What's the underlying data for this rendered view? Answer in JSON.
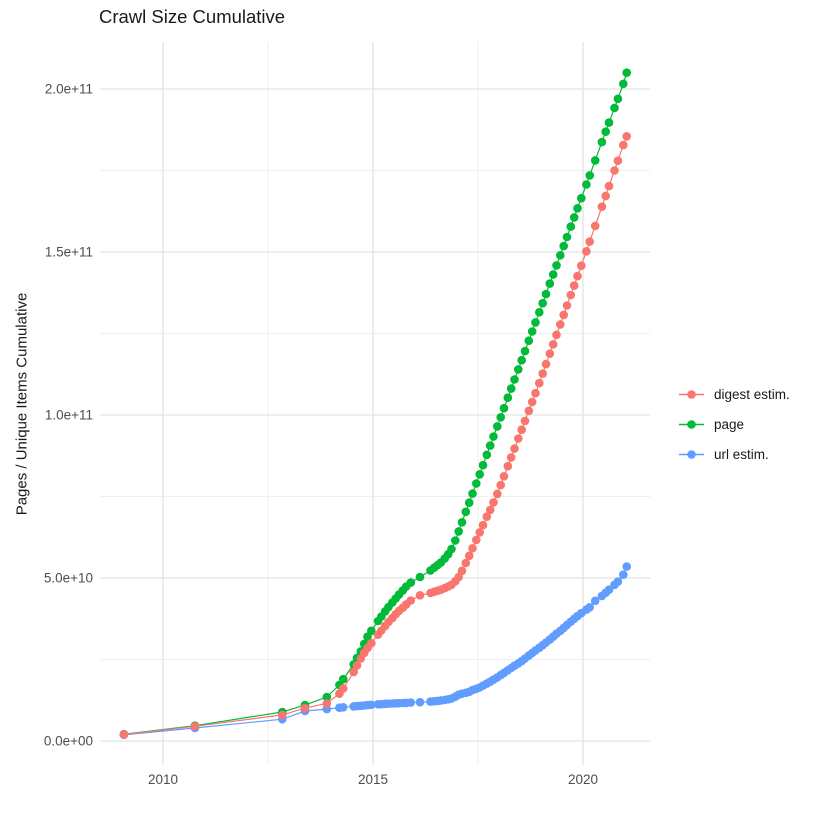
{
  "figure": {
    "title": "Crawl Size Cumulative",
    "background": "#ffffff"
  },
  "chart_data": {
    "type": "line",
    "title": "Crawl Size Cumulative",
    "xlabel": "",
    "ylabel": "Pages / Unique Items Cumulative",
    "grid": true,
    "legend_position": "right",
    "x_axis": {
      "range": [
        2008.5,
        2021.6
      ],
      "major_ticks": [
        {
          "label": "2010",
          "value": 2010
        },
        {
          "label": "2015",
          "value": 2015
        },
        {
          "label": "2020",
          "value": 2020
        }
      ],
      "minor_ticks": [
        2012.5,
        2017.5
      ]
    },
    "y_axis": {
      "range": [
        -5000000000.0,
        215000000000.0
      ],
      "major_ticks": [
        {
          "label": "0.0e+00",
          "value": 0
        },
        {
          "label": "5.0e+10",
          "value": 50000000000.0
        },
        {
          "label": "1.0e+11",
          "value": 100000000000.0
        },
        {
          "label": "1.5e+11",
          "value": 150000000000.0
        },
        {
          "label": "2.0e+11",
          "value": 200000000000.0
        }
      ],
      "minor_ticks": [
        25000000000.0,
        75000000000.0,
        125000000000.0,
        175000000000.0
      ]
    },
    "colors": {
      "grid_major": "#e3e3e3",
      "grid_minor": "#efefef",
      "tick_text": "#4d4d4d",
      "title_text": "#1a1a1a"
    },
    "series": [
      {
        "name": "digest estim.",
        "color": "#F8766D",
        "points": [
          [
            2009.07,
            2000000000.0
          ],
          [
            2010.76,
            4500000000.0
          ],
          [
            2012.84,
            8000000000.0
          ],
          [
            2013.38,
            10100000000.0
          ],
          [
            2013.9,
            11500000000.0
          ],
          [
            2014.2,
            14500000000.0
          ],
          [
            2014.29,
            16100000000.0
          ],
          [
            2014.54,
            21200000000.0
          ],
          [
            2014.62,
            23200000000.0
          ],
          [
            2014.71,
            25300000000.0
          ],
          [
            2014.79,
            27000000000.0
          ],
          [
            2014.87,
            28500000000.0
          ],
          [
            2014.96,
            30000000000.0
          ],
          [
            2015.12,
            32600000000.0
          ],
          [
            2015.2,
            33900000000.0
          ],
          [
            2015.29,
            35300000000.0
          ],
          [
            2015.37,
            36500000000.0
          ],
          [
            2015.46,
            37700000000.0
          ],
          [
            2015.54,
            38900000000.0
          ],
          [
            2015.62,
            39900000000.0
          ],
          [
            2015.71,
            40900000000.0
          ],
          [
            2015.79,
            41900000000.0
          ],
          [
            2015.9,
            43100000000.0
          ],
          [
            2016.12,
            44700000000.0
          ],
          [
            2016.37,
            45400000000.0
          ],
          [
            2016.46,
            45800000000.0
          ],
          [
            2016.54,
            46100000000.0
          ],
          [
            2016.62,
            46400000000.0
          ],
          [
            2016.71,
            46900000000.0
          ],
          [
            2016.79,
            47400000000.0
          ],
          [
            2016.87,
            47900000000.0
          ],
          [
            2016.96,
            49000000000.0
          ],
          [
            2017.04,
            50300000000.0
          ],
          [
            2017.12,
            52200000000.0
          ],
          [
            2017.21,
            54600000000.0
          ],
          [
            2017.29,
            56800000000.0
          ],
          [
            2017.37,
            59100000000.0
          ],
          [
            2017.46,
            61700000000.0
          ],
          [
            2017.54,
            64000000000.0
          ],
          [
            2017.62,
            66200000000.0
          ],
          [
            2017.71,
            68800000000.0
          ],
          [
            2017.79,
            70900000000.0
          ],
          [
            2017.87,
            73200000000.0
          ],
          [
            2017.96,
            75800000000.0
          ],
          [
            2018.04,
            78500000000.0
          ],
          [
            2018.12,
            81200000000.0
          ],
          [
            2018.21,
            84300000000.0
          ],
          [
            2018.29,
            87000000000.0
          ],
          [
            2018.37,
            89700000000.0
          ],
          [
            2018.46,
            92800000000.0
          ],
          [
            2018.54,
            95500000000.0
          ],
          [
            2018.62,
            98200000000.0
          ],
          [
            2018.71,
            101300000000.0
          ],
          [
            2018.79,
            104000000000.0
          ],
          [
            2018.87,
            106700000000.0
          ],
          [
            2018.96,
            109800000000.0
          ],
          [
            2019.04,
            112700000000.0
          ],
          [
            2019.12,
            115600000000.0
          ],
          [
            2019.21,
            118800000000.0
          ],
          [
            2019.29,
            121700000000.0
          ],
          [
            2019.37,
            124600000000.0
          ],
          [
            2019.46,
            127800000000.0
          ],
          [
            2019.54,
            130700000000.0
          ],
          [
            2019.62,
            133600000000.0
          ],
          [
            2019.71,
            136800000000.0
          ],
          [
            2019.79,
            139700000000.0
          ],
          [
            2019.87,
            142600000000.0
          ],
          [
            2019.96,
            145800000000.0
          ],
          [
            2020.08,
            150200000000.0
          ],
          [
            2020.16,
            153200000000.0
          ],
          [
            2020.29,
            158000000000.0
          ],
          [
            2020.45,
            163900000000.0
          ],
          [
            2020.54,
            167200000000.0
          ],
          [
            2020.62,
            170200000000.0
          ],
          [
            2020.75,
            175000000000.0
          ],
          [
            2020.83,
            178000000000.0
          ],
          [
            2020.96,
            182800000000.0
          ],
          [
            2021.04,
            185500000000.0
          ]
        ]
      },
      {
        "name": "page",
        "color": "#00BA38",
        "points": [
          [
            2009.07,
            2100000000.0
          ],
          [
            2010.76,
            4700000000.0
          ],
          [
            2012.84,
            8900000000.0
          ],
          [
            2013.38,
            11000000000.0
          ],
          [
            2013.9,
            13500000000.0
          ],
          [
            2014.2,
            17200000000.0
          ],
          [
            2014.29,
            19000000000.0
          ],
          [
            2014.54,
            23500000000.0
          ],
          [
            2014.62,
            25500000000.0
          ],
          [
            2014.71,
            27500000000.0
          ],
          [
            2014.79,
            29800000000.0
          ],
          [
            2014.87,
            32000000000.0
          ],
          [
            2014.96,
            33800000000.0
          ],
          [
            2015.12,
            36800000000.0
          ],
          [
            2015.2,
            38200000000.0
          ],
          [
            2015.29,
            39800000000.0
          ],
          [
            2015.37,
            41100000000.0
          ],
          [
            2015.46,
            42500000000.0
          ],
          [
            2015.54,
            43700000000.0
          ],
          [
            2015.62,
            44900000000.0
          ],
          [
            2015.71,
            46200000000.0
          ],
          [
            2015.79,
            47400000000.0
          ],
          [
            2015.9,
            48600000000.0
          ],
          [
            2016.12,
            50300000000.0
          ],
          [
            2016.37,
            52300000000.0
          ],
          [
            2016.46,
            53200000000.0
          ],
          [
            2016.54,
            54000000000.0
          ],
          [
            2016.62,
            54800000000.0
          ],
          [
            2016.71,
            56000000000.0
          ],
          [
            2016.79,
            57300000000.0
          ],
          [
            2016.87,
            58900000000.0
          ],
          [
            2016.96,
            61500000000.0
          ],
          [
            2017.04,
            64300000000.0
          ],
          [
            2017.12,
            67100000000.0
          ],
          [
            2017.21,
            70300000000.0
          ],
          [
            2017.29,
            73100000000.0
          ],
          [
            2017.37,
            75900000000.0
          ],
          [
            2017.46,
            79000000000.0
          ],
          [
            2017.54,
            81800000000.0
          ],
          [
            2017.62,
            84600000000.0
          ],
          [
            2017.71,
            87800000000.0
          ],
          [
            2017.79,
            90600000000.0
          ],
          [
            2017.87,
            93400000000.0
          ],
          [
            2017.96,
            96500000000.0
          ],
          [
            2018.04,
            99300000000.0
          ],
          [
            2018.12,
            102100000000.0
          ],
          [
            2018.21,
            105300000000.0
          ],
          [
            2018.29,
            108100000000.0
          ],
          [
            2018.37,
            110900000000.0
          ],
          [
            2018.46,
            114000000000.0
          ],
          [
            2018.54,
            116800000000.0
          ],
          [
            2018.62,
            119600000000.0
          ],
          [
            2018.71,
            122800000000.0
          ],
          [
            2018.79,
            125600000000.0
          ],
          [
            2018.87,
            128400000000.0
          ],
          [
            2018.96,
            131500000000.0
          ],
          [
            2019.04,
            134300000000.0
          ],
          [
            2019.12,
            137100000000.0
          ],
          [
            2019.21,
            140300000000.0
          ],
          [
            2019.29,
            143100000000.0
          ],
          [
            2019.37,
            145900000000.0
          ],
          [
            2019.46,
            149000000000.0
          ],
          [
            2019.54,
            151800000000.0
          ],
          [
            2019.62,
            154600000000.0
          ],
          [
            2019.71,
            157800000000.0
          ],
          [
            2019.79,
            160600000000.0
          ],
          [
            2019.87,
            163400000000.0
          ],
          [
            2019.96,
            166500000000.0
          ],
          [
            2020.08,
            170700000000.0
          ],
          [
            2020.16,
            173500000000.0
          ],
          [
            2020.29,
            178100000000.0
          ],
          [
            2020.45,
            183700000000.0
          ],
          [
            2020.54,
            186900000000.0
          ],
          [
            2020.62,
            189700000000.0
          ],
          [
            2020.75,
            194200000000.0
          ],
          [
            2020.83,
            197000000000.0
          ],
          [
            2020.96,
            201600000000.0
          ],
          [
            2021.04,
            205000000000.0
          ]
        ]
      },
      {
        "name": "url estim.",
        "color": "#619CFF",
        "points": [
          [
            2009.07,
            1900000000.0
          ],
          [
            2010.76,
            4000000000.0
          ],
          [
            2012.84,
            6700000000.0
          ],
          [
            2013.38,
            9200000000.0
          ],
          [
            2013.9,
            9800000000.0
          ],
          [
            2014.2,
            10200000000.0
          ],
          [
            2014.29,
            10350000000.0
          ],
          [
            2014.54,
            10600000000.0
          ],
          [
            2014.62,
            10700000000.0
          ],
          [
            2014.71,
            10800000000.0
          ],
          [
            2014.79,
            10900000000.0
          ],
          [
            2014.87,
            11000000000.0
          ],
          [
            2014.96,
            11100000000.0
          ],
          [
            2015.12,
            11250000000.0
          ],
          [
            2015.2,
            11300000000.0
          ],
          [
            2015.29,
            11400000000.0
          ],
          [
            2015.37,
            11450000000.0
          ],
          [
            2015.46,
            11500000000.0
          ],
          [
            2015.54,
            11550000000.0
          ],
          [
            2015.62,
            11600000000.0
          ],
          [
            2015.71,
            11650000000.0
          ],
          [
            2015.79,
            11700000000.0
          ],
          [
            2015.9,
            11800000000.0
          ],
          [
            2016.12,
            11900000000.0
          ],
          [
            2016.37,
            12100000000.0
          ],
          [
            2016.46,
            12200000000.0
          ],
          [
            2016.54,
            12300000000.0
          ],
          [
            2016.62,
            12450000000.0
          ],
          [
            2016.71,
            12600000000.0
          ],
          [
            2016.79,
            12800000000.0
          ],
          [
            2016.87,
            13000000000.0
          ],
          [
            2016.96,
            13600000000.0
          ],
          [
            2017.04,
            14200000000.0
          ],
          [
            2017.12,
            14500000000.0
          ],
          [
            2017.21,
            14800000000.0
          ],
          [
            2017.29,
            15100000000.0
          ],
          [
            2017.37,
            15600000000.0
          ],
          [
            2017.46,
            16000000000.0
          ],
          [
            2017.54,
            16400000000.0
          ],
          [
            2017.62,
            17000000000.0
          ],
          [
            2017.71,
            17600000000.0
          ],
          [
            2017.79,
            18200000000.0
          ],
          [
            2017.87,
            18800000000.0
          ],
          [
            2017.96,
            19500000000.0
          ],
          [
            2018.04,
            20200000000.0
          ],
          [
            2018.12,
            20900000000.0
          ],
          [
            2018.21,
            21700000000.0
          ],
          [
            2018.29,
            22400000000.0
          ],
          [
            2018.37,
            23100000000.0
          ],
          [
            2018.46,
            23800000000.0
          ],
          [
            2018.54,
            24500000000.0
          ],
          [
            2018.62,
            25300000000.0
          ],
          [
            2018.71,
            26200000000.0
          ],
          [
            2018.79,
            27000000000.0
          ],
          [
            2018.87,
            27800000000.0
          ],
          [
            2018.96,
            28600000000.0
          ],
          [
            2019.04,
            29400000000.0
          ],
          [
            2019.12,
            30200000000.0
          ],
          [
            2019.21,
            31100000000.0
          ],
          [
            2019.29,
            32000000000.0
          ],
          [
            2019.37,
            32900000000.0
          ],
          [
            2019.46,
            33800000000.0
          ],
          [
            2019.54,
            34700000000.0
          ],
          [
            2019.62,
            35600000000.0
          ],
          [
            2019.71,
            36600000000.0
          ],
          [
            2019.79,
            37500000000.0
          ],
          [
            2019.87,
            38300000000.0
          ],
          [
            2019.96,
            39200000000.0
          ],
          [
            2020.08,
            40300000000.0
          ],
          [
            2020.16,
            41000000000.0
          ],
          [
            2020.29,
            43000000000.0
          ],
          [
            2020.45,
            44500000000.0
          ],
          [
            2020.54,
            45500000000.0
          ],
          [
            2020.62,
            46400000000.0
          ],
          [
            2020.75,
            47900000000.0
          ],
          [
            2020.83,
            48900000000.0
          ],
          [
            2020.96,
            51000000000.0
          ],
          [
            2021.04,
            53500000000.0
          ]
        ]
      }
    ]
  }
}
